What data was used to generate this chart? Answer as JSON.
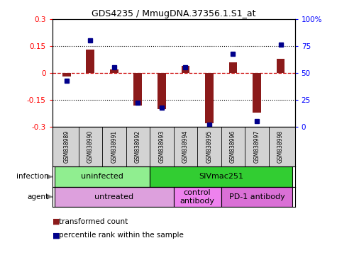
{
  "title": "GDS4235 / MmugDNA.37356.1.S1_at",
  "samples": [
    "GSM838989",
    "GSM838990",
    "GSM838991",
    "GSM838992",
    "GSM838993",
    "GSM838994",
    "GSM838995",
    "GSM838996",
    "GSM838997",
    "GSM838998"
  ],
  "transformed_count": [
    -0.02,
    0.13,
    0.02,
    -0.18,
    -0.2,
    0.04,
    -0.28,
    0.06,
    -0.22,
    0.08
  ],
  "percentile_rank": [
    43,
    80,
    55,
    22,
    18,
    55,
    2,
    68,
    5,
    76
  ],
  "ylim": [
    -0.3,
    0.3
  ],
  "yticks": [
    -0.3,
    -0.15,
    0,
    0.15,
    0.3
  ],
  "right_yticks": [
    0,
    25,
    50,
    75,
    100
  ],
  "right_ylabels": [
    "0",
    "25",
    "50",
    "75",
    "100%"
  ],
  "bar_color": "#8B1A1A",
  "dot_color": "#00008B",
  "zero_line_color": "#CC0000",
  "dotted_line_color": "#000000",
  "infection_groups": [
    {
      "label": "uninfected",
      "start": 0,
      "end": 4,
      "color": "#90EE90"
    },
    {
      "label": "SIVmac251",
      "start": 4,
      "end": 10,
      "color": "#32CD32"
    }
  ],
  "agent_groups": [
    {
      "label": "untreated",
      "start": 0,
      "end": 5,
      "color": "#DDA0DD"
    },
    {
      "label": "control\nantibody",
      "start": 5,
      "end": 7,
      "color": "#EE82EE"
    },
    {
      "label": "PD-1 antibody",
      "start": 7,
      "end": 10,
      "color": "#DA70D6"
    }
  ],
  "infection_label": "infection",
  "agent_label": "agent",
  "background_color": "#FFFFFF",
  "sample_box_color": "#CCCCCC",
  "legend_bar_label": "transformed count",
  "legend_dot_label": "percentile rank within the sample"
}
